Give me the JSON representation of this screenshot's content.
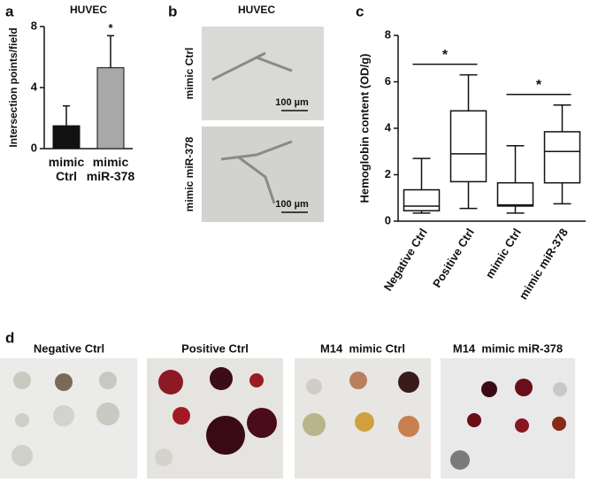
{
  "chart_data": [
    {
      "type": "bar",
      "panel": "a",
      "title": "HUVEC",
      "y_label": "Intersection points/field",
      "categories": [
        "mimic Ctrl",
        "mimic miR-378"
      ],
      "values": [
        1.5,
        5.3
      ],
      "errors": [
        1.3,
        2.1
      ],
      "colors": [
        "#111111",
        "#a8a8a8"
      ],
      "annotations": [
        null,
        "*"
      ],
      "ylim": [
        0,
        8
      ],
      "yticks": [
        0,
        4,
        8
      ]
    },
    {
      "type": "box",
      "panel": "c",
      "y_label": "Hemoglobin content (OD/g)",
      "categories": [
        "Negative Ctrl",
        "Positive Ctrl",
        "mimic Ctrl",
        "mimic miR-378"
      ],
      "boxes": [
        {
          "min": 0.35,
          "q1": 0.45,
          "median": 0.65,
          "q3": 1.35,
          "max": 2.7
        },
        {
          "min": 0.55,
          "q1": 1.7,
          "median": 2.9,
          "q3": 4.75,
          "max": 6.3
        },
        {
          "min": 0.35,
          "q1": 0.65,
          "median": 0.7,
          "q3": 1.65,
          "max": 3.25
        },
        {
          "min": 0.75,
          "q1": 1.65,
          "median": 3.0,
          "q3": 3.85,
          "max": 5.0
        }
      ],
      "significance": [
        {
          "pair": [
            0,
            1
          ],
          "label": "*"
        },
        {
          "pair": [
            2,
            3
          ],
          "label": "*"
        }
      ],
      "ylim": [
        0,
        8
      ],
      "yticks": [
        0,
        2,
        4,
        6,
        8
      ]
    }
  ],
  "micrographs": {
    "panel": "b",
    "title": "HUVEC",
    "images": [
      {
        "label": "mimic Ctrl",
        "scale": "100 µm"
      },
      {
        "label": "mimic miR-378",
        "scale": "100 µm"
      }
    ]
  },
  "photos": {
    "panel": "d",
    "images": [
      "Negative Ctrl",
      "Positive Ctrl",
      "M14  mimic Ctrl",
      "M14  mimic miR-378"
    ]
  }
}
